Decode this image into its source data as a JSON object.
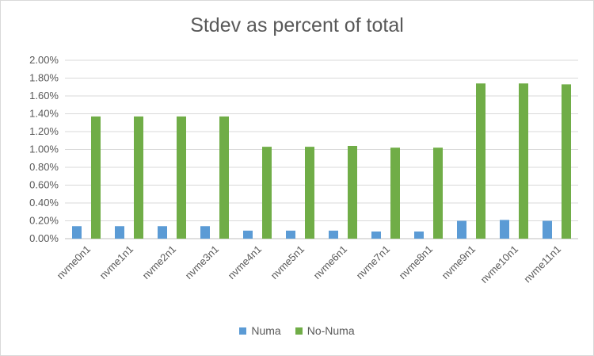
{
  "chart_data": {
    "type": "bar",
    "title": "Stdev as percent of total",
    "xlabel": "",
    "ylabel": "",
    "ylim": [
      0,
      2.0
    ],
    "yticks": [
      "0.00%",
      "0.20%",
      "0.40%",
      "0.60%",
      "0.80%",
      "1.00%",
      "1.20%",
      "1.40%",
      "1.60%",
      "1.80%",
      "2.00%"
    ],
    "categories": [
      "nvme0n1",
      "nvme1n1",
      "nvme2n1",
      "nvme3n1",
      "nvme4n1",
      "nvme5n1",
      "nvme6n1",
      "nvme7n1",
      "nvme8n1",
      "nvme9n1",
      "nvme10n1",
      "nvme11n1"
    ],
    "series": [
      {
        "name": "Numa",
        "color": "#5b9bd5",
        "values": [
          0.14,
          0.14,
          0.14,
          0.14,
          0.09,
          0.09,
          0.09,
          0.08,
          0.08,
          0.2,
          0.21,
          0.2
        ]
      },
      {
        "name": "No-Numa",
        "color": "#70ad47",
        "values": [
          1.37,
          1.37,
          1.37,
          1.37,
          1.03,
          1.03,
          1.04,
          1.02,
          1.02,
          1.74,
          1.74,
          1.73
        ]
      }
    ],
    "grid": true,
    "legend_position": "bottom"
  }
}
